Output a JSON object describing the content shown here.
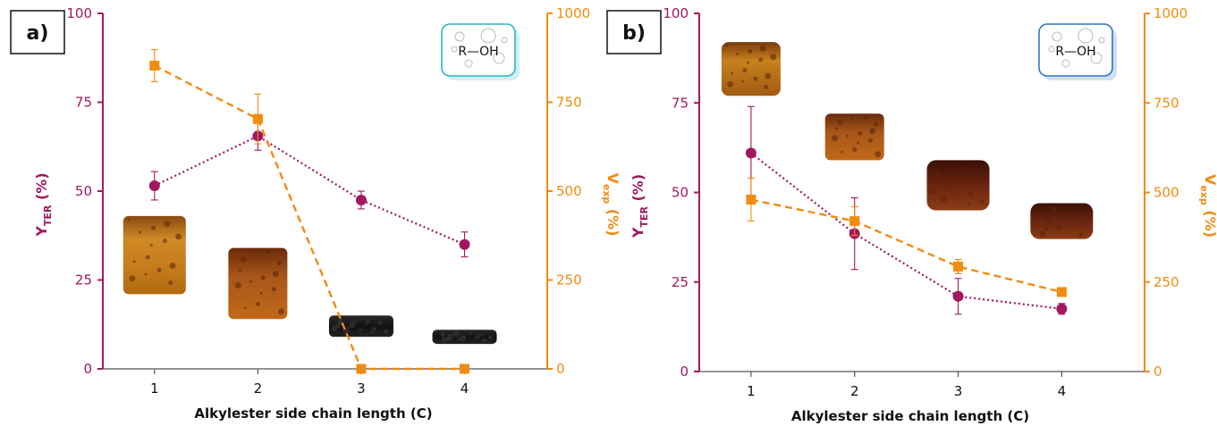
{
  "colors": {
    "left_axis": "#a0185f",
    "right_axis": "#f08c10",
    "y_ter_series": "#a0185f",
    "v_exp_series": "#f08c10",
    "panel_a_badge": "#2bb6c8",
    "panel_b_badge": "#2f74c0"
  },
  "icons": {
    "molecule_badge": "alcohol-molecule-icon",
    "sample_photo": "gel-sample-photo"
  },
  "chart_data": [
    {
      "type": "scatter",
      "panel_label": "a)",
      "molecule_label": "R—OH",
      "xlabel": "Alkylester side chain length (C)",
      "ylabel_left": {
        "main": "Y",
        "sub": "TER",
        "unit": "(%)"
      },
      "ylabel_right": {
        "main": "V",
        "sub": "exp",
        "unit": "(%)"
      },
      "x": [
        1,
        2,
        3,
        4
      ],
      "xticks": [
        "1",
        "2",
        "3",
        "4"
      ],
      "xlim": [
        0.5,
        4.8
      ],
      "ylim_left": [
        0,
        100
      ],
      "yticks_left": [
        "0",
        "25",
        "50",
        "75",
        "100"
      ],
      "ylim_right": [
        0,
        1000
      ],
      "yticks_right": [
        "0",
        "250",
        "500",
        "750",
        "1000"
      ],
      "series": [
        {
          "axis": "left",
          "marker": "circle",
          "line": "dotted",
          "values": [
            51.5,
            65.5,
            47.5,
            35
          ],
          "errors": [
            4,
            4,
            2.5,
            3.5
          ]
        },
        {
          "axis": "right",
          "marker": "square",
          "line": "dashed",
          "values": [
            853,
            703,
            0,
            0
          ],
          "errors": [
            45,
            70,
            0,
            0
          ]
        }
      ],
      "sample_images": [
        {
          "x": 1,
          "y_top_left": 43,
          "y_bottom_left": 21,
          "shape": "cylinder-light"
        },
        {
          "x": 2,
          "y_top_left": 34,
          "y_bottom_left": 14,
          "shape": "cylinder-dark"
        },
        {
          "x": 3,
          "y_top_left": 15,
          "y_bottom_left": 9,
          "shape": "disc-black"
        },
        {
          "x": 4,
          "y_top_left": 11,
          "y_bottom_left": 7,
          "shape": "disc-black"
        }
      ],
      "grid": false,
      "legend": "none"
    },
    {
      "type": "scatter",
      "panel_label": "b)",
      "molecule_label": "R—OH",
      "xlabel": "Alkylester side chain length (C)",
      "ylabel_left": {
        "main": "Y",
        "sub": "TER",
        "unit": "(%)"
      },
      "ylabel_right": {
        "main": "V",
        "sub": "exp",
        "unit": "(%)"
      },
      "x": [
        1,
        2,
        3,
        4
      ],
      "xticks": [
        "1",
        "2",
        "3",
        "4"
      ],
      "xlim": [
        0.5,
        4.8
      ],
      "ylim_left": [
        0,
        100
      ],
      "yticks_left": [
        "0",
        "25",
        "50",
        "75",
        "100"
      ],
      "ylim_right": [
        0,
        1000
      ],
      "yticks_right": [
        "0",
        "250",
        "500",
        "750",
        "1000"
      ],
      "series": [
        {
          "axis": "left",
          "marker": "circle",
          "line": "dotted",
          "values": [
            61,
            38.5,
            21,
            17.5
          ],
          "errors": [
            13,
            10,
            5,
            1.5
          ]
        },
        {
          "axis": "right",
          "marker": "square",
          "line": "dashed",
          "values": [
            480,
            420,
            293,
            222
          ],
          "errors": [
            60,
            40,
            20,
            10
          ]
        }
      ],
      "sample_images": [
        {
          "x": 1,
          "y_top_left": 92,
          "y_bottom_left": 77,
          "shape": "block-light"
        },
        {
          "x": 2,
          "y_top_left": 72,
          "y_bottom_left": 59,
          "shape": "block-medium"
        },
        {
          "x": 3,
          "y_top_left": 59,
          "y_bottom_left": 45,
          "shape": "block-dark"
        },
        {
          "x": 4,
          "y_top_left": 47,
          "y_bottom_left": 37,
          "shape": "block-dark"
        }
      ],
      "grid": false,
      "legend": "none"
    }
  ]
}
